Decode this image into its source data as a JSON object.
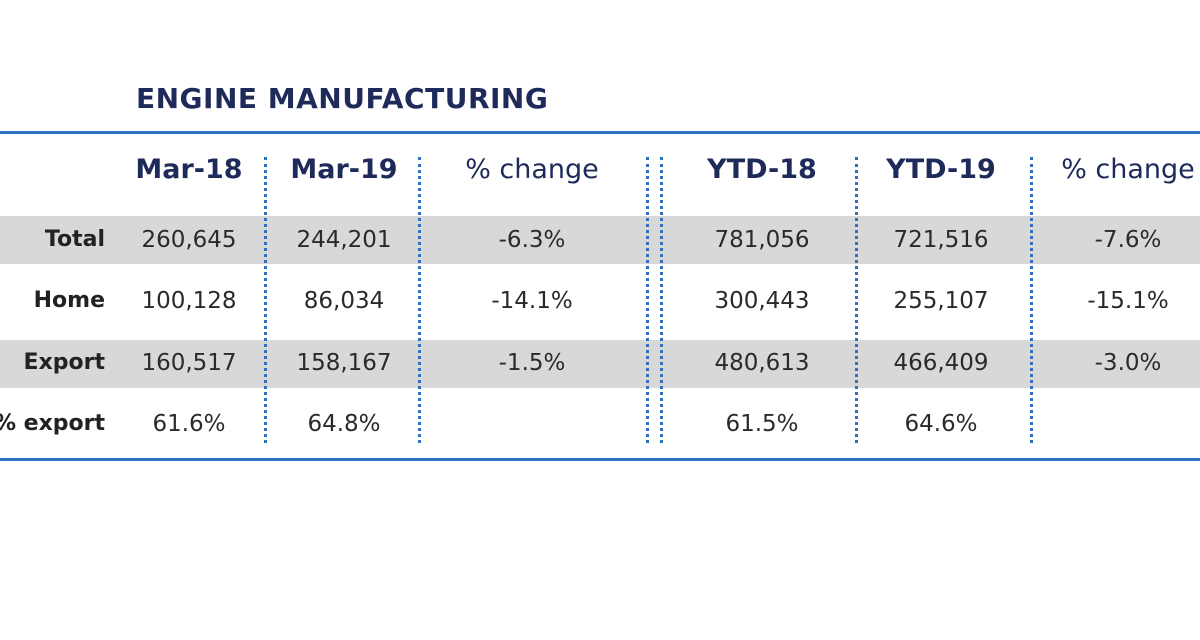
{
  "title": "ENGINE MANUFACTURING",
  "headers": [
    "Mar-18",
    "Mar-19",
    "% change",
    "YTD-18",
    "YTD-19",
    "% change"
  ],
  "rows": [
    {
      "label": "Total",
      "values": [
        "260,645",
        "244,201",
        "-6.3%",
        "781,056",
        "721,516",
        "-7.6%"
      ]
    },
    {
      "label": "Home",
      "values": [
        "100,128",
        "86,034",
        "-14.1%",
        "300,443",
        "255,107",
        "-15.1%"
      ]
    },
    {
      "label": "Export",
      "values": [
        "160,517",
        "158,167",
        "-1.5%",
        "480,613",
        "466,409",
        "-3.0%"
      ]
    },
    {
      "label": "% export",
      "values": [
        "61.6%",
        "64.8%",
        "",
        "61.5%",
        "64.6%",
        ""
      ]
    }
  ],
  "colors": {
    "accent": "#2f6fc4",
    "title": "#1e2a5a",
    "band": "#d8d8d8"
  },
  "chart_data": {
    "type": "table",
    "title": "ENGINE MANUFACTURING",
    "columns": [
      "Mar-18",
      "Mar-19",
      "% change",
      "YTD-18",
      "YTD-19",
      "% change"
    ],
    "rows": [
      {
        "label": "Total",
        "values": [
          260645,
          244201,
          -6.3,
          781056,
          721516,
          -7.6
        ]
      },
      {
        "label": "Home",
        "values": [
          100128,
          86034,
          -14.1,
          300443,
          255107,
          -15.1
        ]
      },
      {
        "label": "Export",
        "values": [
          160517,
          158167,
          -1.5,
          480613,
          466409,
          -3.0
        ]
      },
      {
        "label": "% export",
        "values": [
          61.6,
          64.8,
          null,
          61.5,
          64.6,
          null
        ]
      }
    ]
  }
}
